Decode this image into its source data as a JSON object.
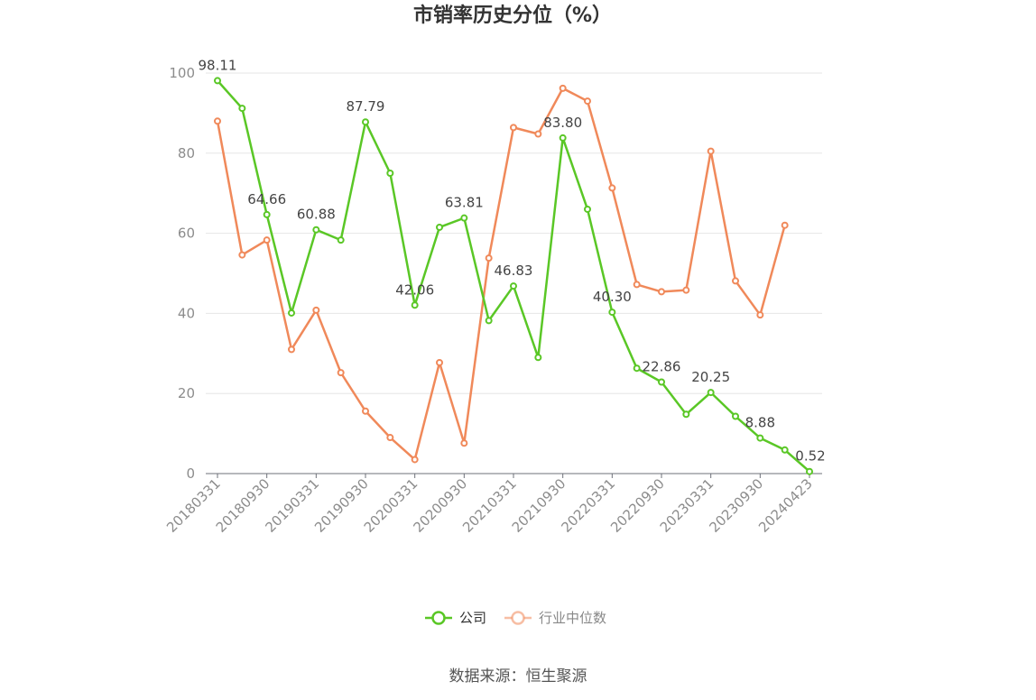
{
  "chart_data": {
    "type": "line",
    "title": "市销率历史分位（%）",
    "xlabel": "",
    "ylabel": "",
    "ylim": [
      0,
      100
    ],
    "yticks": [
      "0",
      "20",
      "40",
      "60",
      "80",
      "100"
    ],
    "xticks": [
      "20180331",
      "20180930",
      "20190331",
      "20190930",
      "20200331",
      "20200930",
      "20210331",
      "20210930",
      "20220331",
      "20220930",
      "20230331",
      "20230930",
      "20240423"
    ],
    "x": [
      "20180331",
      "20180630",
      "20180930",
      "20181231",
      "20190331",
      "20190630",
      "20190930",
      "20191231",
      "20200331",
      "20200630",
      "20200930",
      "20201231",
      "20210331",
      "20210630",
      "20210930",
      "20211231",
      "20220331",
      "20220630",
      "20220930",
      "20221231",
      "20230331",
      "20230630",
      "20230930",
      "20231231",
      "20240423"
    ],
    "series": [
      {
        "name": "公司",
        "color": "#5ac726",
        "values": [
          98.11,
          91.2,
          64.66,
          40.1,
          60.88,
          58.3,
          87.79,
          75.0,
          42.06,
          61.5,
          63.81,
          38.2,
          46.83,
          29.0,
          83.8,
          66.0,
          40.3,
          26.3,
          22.86,
          14.8,
          20.25,
          14.3,
          8.88,
          5.9,
          0.52
        ],
        "labels": [
          "98.11",
          "",
          "64.66",
          "",
          "60.88",
          "",
          "87.79",
          "",
          "42.06",
          "",
          "63.81",
          "",
          "46.83",
          "",
          "83.80",
          "",
          "40.30",
          "",
          "22.86",
          "",
          "20.25",
          "",
          "8.88",
          "",
          "0.52"
        ]
      },
      {
        "name": "行业中位数",
        "color": "#f0895a",
        "values": [
          88.0,
          54.6,
          58.3,
          31.0,
          40.8,
          25.2,
          15.6,
          9.0,
          3.5,
          27.7,
          7.6,
          53.8,
          86.4,
          84.8,
          96.2,
          93.0,
          71.3,
          47.2,
          45.4,
          45.8,
          80.5,
          48.1,
          39.6,
          62.0,
          null
        ],
        "labels": []
      }
    ],
    "legend_position": "bottom-center",
    "grid": true,
    "source": "数据来源：恒生聚源"
  }
}
